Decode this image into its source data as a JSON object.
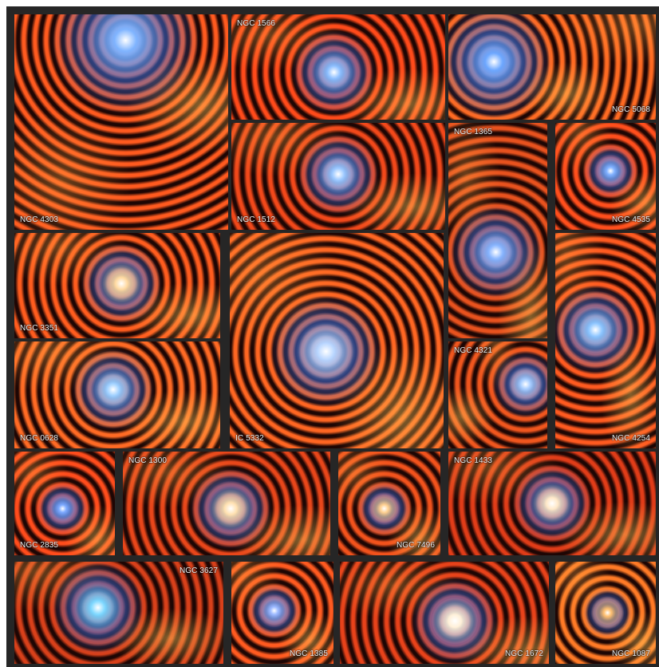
{
  "galaxies": [
    {
      "name": "NGC 4303",
      "core": "#7fb4ff",
      "arm": "#ff5a1f"
    },
    {
      "name": "NGC 1566",
      "core": "#8fc0ff",
      "arm": "#ff4a1a"
    },
    {
      "name": "NGC 5068",
      "core": "#6ea8ff",
      "arm": "#ff6a22"
    },
    {
      "name": "NGC 1512",
      "core": "#9cc8ff",
      "arm": "#f2481a"
    },
    {
      "name": "NGC 1365",
      "core": "#8ab6ff",
      "arm": "#e8521e"
    },
    {
      "name": "NGC 4535",
      "core": "#7fb0ff",
      "arm": "#ff4e1c"
    },
    {
      "name": "NGC 3351",
      "core": "#ffd9a0",
      "arm": "#ff5c1e"
    },
    {
      "name": "IC 5332",
      "core": "#b9d6ff",
      "arm": "#ff6622"
    },
    {
      "name": "NGC 4321",
      "core": "#a6ccff",
      "arm": "#f0561e"
    },
    {
      "name": "NGC 4254",
      "core": "#8ec6ff",
      "arm": "#ff5a20"
    },
    {
      "name": "NGC 0628",
      "core": "#9fd0ff",
      "arm": "#ff6a24"
    },
    {
      "name": "NGC 2835",
      "core": "#7aa8ff",
      "arm": "#ff4c1c"
    },
    {
      "name": "NGC 1300",
      "core": "#ffe0b0",
      "arm": "#e8461a"
    },
    {
      "name": "NGC 7496",
      "core": "#ffd090",
      "arm": "#f2521c"
    },
    {
      "name": "NGC 1433",
      "core": "#ffe8c8",
      "arm": "#e03c18"
    },
    {
      "name": "NGC 3627",
      "core": "#7fd8ff",
      "arm": "#d8401a"
    },
    {
      "name": "NGC 1385",
      "core": "#9ab8ff",
      "arm": "#ff5a20"
    },
    {
      "name": "NGC 1672",
      "core": "#fff0d8",
      "arm": "#e8421a"
    },
    {
      "name": "NGC 1087",
      "core": "#ffc070",
      "arm": "#ff7a26"
    }
  ]
}
